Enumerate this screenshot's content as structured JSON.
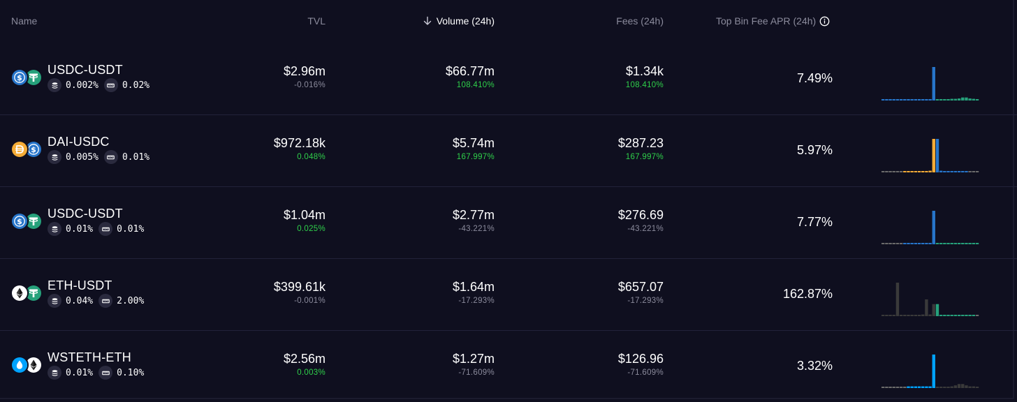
{
  "header": {
    "name": "Name",
    "tvl": "TVL",
    "volume": "Volume (24h)",
    "fees": "Fees (24h)",
    "apr": "Top Bin Fee APR (24h)",
    "sort_icon": "arrow-down-icon",
    "info_icon": "info-circle-icon"
  },
  "colors": {
    "background": "#0f0f1f",
    "positive": "#2fd04a",
    "muted": "#8b8b9c",
    "usdc_blue": "#2775ca",
    "usdt_green": "#26a17b",
    "dai_yellow": "#f5ac37",
    "wsteth_blue": "#00a3ff",
    "bin_grey": "#3a3a3a"
  },
  "pools": [
    {
      "pair": "USDC-USDT",
      "token_a_icon": "usdc-icon",
      "token_b_icon": "usdt-icon",
      "bin_step": "0.002%",
      "base_fee": "0.02%",
      "tvl": "$2.96m",
      "tvl_change": "-0.016%",
      "tvl_change_positive": false,
      "volume": "$66.77m",
      "volume_change": "108.410%",
      "volume_change_positive": true,
      "fees": "$1.34k",
      "fees_change": "108.410%",
      "fees_change_positive": true,
      "apr": "7.49%",
      "bins": {
        "values": [
          0.04,
          0.04,
          0.04,
          0.04,
          0.04,
          0.04,
          0.04,
          0.04,
          0.04,
          0.04,
          0.04,
          0.04,
          0.04,
          0.04,
          1.0,
          0.04,
          0.04,
          0.04,
          0.04,
          0.05,
          0.05,
          0.06,
          0.09,
          0.09,
          0.06,
          0.05,
          0.04
        ],
        "colors": [
          "#2775ca",
          "#2775ca",
          "#2775ca",
          "#2775ca",
          "#2775ca",
          "#2775ca",
          "#2775ca",
          "#2775ca",
          "#2775ca",
          "#2775ca",
          "#2775ca",
          "#2775ca",
          "#2775ca",
          "#2775ca",
          "#2775ca",
          "#26a17b",
          "#26a17b",
          "#26a17b",
          "#26a17b",
          "#26a17b",
          "#26a17b",
          "#26a17b",
          "#26a17b",
          "#26a17b",
          "#26a17b",
          "#26a17b",
          "#26a17b"
        ]
      }
    },
    {
      "pair": "DAI-USDC",
      "token_a_icon": "dai-icon",
      "token_b_icon": "usdc-icon",
      "bin_step": "0.005%",
      "base_fee": "0.01%",
      "tvl": "$972.18k",
      "tvl_change": "0.048%",
      "tvl_change_positive": true,
      "volume": "$5.74m",
      "volume_change": "167.997%",
      "volume_change_positive": true,
      "fees": "$287.23",
      "fees_change": "167.997%",
      "fees_change_positive": true,
      "apr": "5.97%",
      "bins": {
        "values": [
          0.03,
          0.03,
          0.03,
          0.03,
          0.03,
          0.03,
          0.04,
          0.04,
          0.04,
          0.04,
          0.04,
          0.04,
          0.04,
          0.05,
          1.0,
          1.0,
          0.05,
          0.04,
          0.04,
          0.04,
          0.04,
          0.04,
          0.04,
          0.04,
          0.03,
          0.03,
          0.03
        ],
        "colors": [
          "#6b6b6b",
          "#6b6b6b",
          "#6b6b6b",
          "#6b6b6b",
          "#6b6b6b",
          "#6b6b6b",
          "#f5ac37",
          "#f5ac37",
          "#f5ac37",
          "#f5ac37",
          "#f5ac37",
          "#f5ac37",
          "#f5ac37",
          "#f5ac37",
          "#f5ac37",
          "#2775ca",
          "#2775ca",
          "#2775ca",
          "#2775ca",
          "#2775ca",
          "#2775ca",
          "#2775ca",
          "#2775ca",
          "#2775ca",
          "#6b6b6b",
          "#6b6b6b",
          "#6b6b6b"
        ]
      }
    },
    {
      "pair": "USDC-USDT",
      "token_a_icon": "usdc-icon",
      "token_b_icon": "usdt-icon",
      "bin_step": "0.01%",
      "base_fee": "0.01%",
      "tvl": "$1.04m",
      "tvl_change": "0.025%",
      "tvl_change_positive": true,
      "volume": "$2.77m",
      "volume_change": "-43.221%",
      "volume_change_positive": false,
      "fees": "$276.69",
      "fees_change": "-43.221%",
      "fees_change_positive": false,
      "apr": "7.77%",
      "bins": {
        "values": [
          0.03,
          0.03,
          0.03,
          0.03,
          0.03,
          0.03,
          0.04,
          0.04,
          0.04,
          0.04,
          0.04,
          0.04,
          0.04,
          0.04,
          1.0,
          0.04,
          0.04,
          0.04,
          0.04,
          0.04,
          0.04,
          0.04,
          0.04,
          0.04,
          0.04,
          0.04,
          0.04
        ],
        "colors": [
          "#6b6b6b",
          "#6b6b6b",
          "#6b6b6b",
          "#6b6b6b",
          "#6b6b6b",
          "#6b6b6b",
          "#2775ca",
          "#2775ca",
          "#2775ca",
          "#2775ca",
          "#2775ca",
          "#2775ca",
          "#2775ca",
          "#2775ca",
          "#2775ca",
          "#26a17b",
          "#26a17b",
          "#26a17b",
          "#26a17b",
          "#26a17b",
          "#26a17b",
          "#26a17b",
          "#26a17b",
          "#26a17b",
          "#26a17b",
          "#26a17b",
          "#26a17b"
        ]
      }
    },
    {
      "pair": "ETH-USDT",
      "token_a_icon": "eth-icon",
      "token_b_icon": "usdt-icon",
      "bin_step": "0.04%",
      "base_fee": "2.00%",
      "tvl": "$399.61k",
      "tvl_change": "-0.001%",
      "tvl_change_positive": false,
      "volume": "$1.64m",
      "volume_change": "-17.293%",
      "volume_change_positive": false,
      "fees": "$657.07",
      "fees_change": "-17.293%",
      "fees_change_positive": false,
      "apr": "162.87%",
      "bins": {
        "values": [
          0.04,
          0.04,
          0.04,
          0.04,
          1.0,
          0.04,
          0.04,
          0.04,
          0.04,
          0.04,
          0.04,
          0.05,
          0.5,
          0.05,
          0.36,
          0.36,
          0.04,
          0.04,
          0.04,
          0.04,
          0.04,
          0.04,
          0.04,
          0.04,
          0.04,
          0.04,
          0.04
        ],
        "colors": [
          "#3a3a3a",
          "#3a3a3a",
          "#3a3a3a",
          "#3a3a3a",
          "#3a3a3a",
          "#3a3a3a",
          "#3a3a3a",
          "#3a3a3a",
          "#3a3a3a",
          "#3a3a3a",
          "#3a3a3a",
          "#3a3a3a",
          "#3a3a3a",
          "#3a3a3a",
          "#3a3a3a",
          "#26a17b",
          "#26a17b",
          "#26a17b",
          "#26a17b",
          "#26a17b",
          "#26a17b",
          "#26a17b",
          "#26a17b",
          "#26a17b",
          "#26a17b",
          "#26a17b",
          "#6b6b6b"
        ]
      }
    },
    {
      "pair": "WSTETH-ETH",
      "token_a_icon": "wsteth-icon",
      "token_b_icon": "eth-icon",
      "bin_step": "0.01%",
      "base_fee": "0.10%",
      "tvl": "$2.56m",
      "tvl_change": "0.003%",
      "tvl_change_positive": true,
      "volume": "$1.27m",
      "volume_change": "-71.609%",
      "volume_change_positive": false,
      "fees": "$126.96",
      "fees_change": "-71.609%",
      "fees_change_positive": false,
      "apr": "3.32%",
      "bins": {
        "values": [
          0.04,
          0.04,
          0.04,
          0.04,
          0.04,
          0.04,
          0.04,
          0.05,
          0.05,
          0.05,
          0.05,
          0.05,
          0.05,
          0.05,
          1.0,
          0.04,
          0.04,
          0.04,
          0.04,
          0.05,
          0.08,
          0.12,
          0.12,
          0.08,
          0.05,
          0.05,
          0.04
        ],
        "colors": [
          "#6b6b6b",
          "#6b6b6b",
          "#6b6b6b",
          "#6b6b6b",
          "#6b6b6b",
          "#6b6b6b",
          "#6b6b6b",
          "#00a3ff",
          "#00a3ff",
          "#00a3ff",
          "#00a3ff",
          "#00a3ff",
          "#00a3ff",
          "#00a3ff",
          "#00a3ff",
          "#3a3a3a",
          "#3a3a3a",
          "#3a3a3a",
          "#3a3a3a",
          "#3a3a3a",
          "#3a3a3a",
          "#3a3a3a",
          "#3a3a3a",
          "#3a3a3a",
          "#3a3a3a",
          "#3a3a3a",
          "#3a3a3a"
        ]
      }
    }
  ]
}
